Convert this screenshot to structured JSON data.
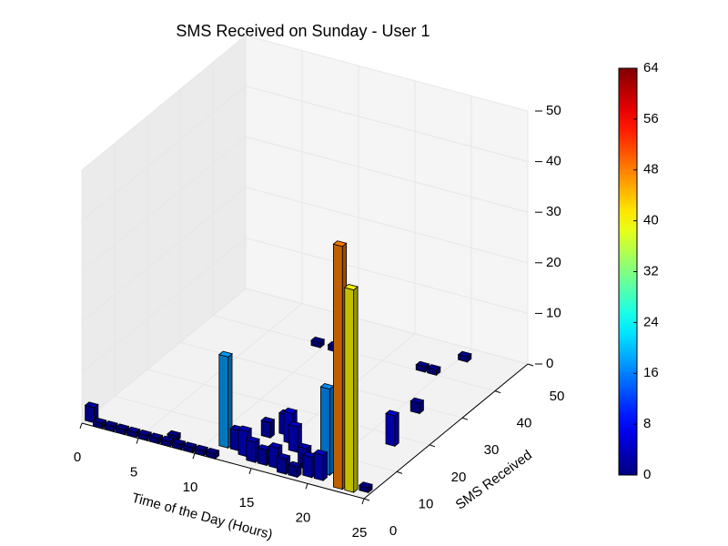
{
  "chart_data": {
    "type": "bar3d",
    "title": "SMS Received on Sunday - User 1",
    "xlabel": "Time of the Day (Hours)",
    "ylabel": "SMS Received",
    "x": [
      0,
      1,
      2,
      3,
      4,
      5,
      6,
      7,
      8,
      9,
      10,
      11,
      7,
      11,
      12,
      13,
      14,
      15,
      16,
      17,
      18,
      19,
      20,
      13,
      15,
      14,
      16,
      18,
      20,
      22,
      23,
      24,
      9,
      10.5,
      18,
      19,
      20,
      21,
      22
    ],
    "y": [
      1,
      0,
      0,
      0,
      0,
      0,
      0,
      0,
      0,
      0,
      0,
      0,
      2,
      4,
      4,
      3,
      2,
      2,
      2,
      1,
      1,
      2,
      2,
      10,
      10,
      12,
      8,
      4,
      4,
      1,
      1,
      2,
      39,
      39,
      40,
      40,
      46,
      28,
      17
    ],
    "values": [
      3,
      1,
      1,
      1,
      1,
      1,
      1,
      1,
      1,
      1,
      1,
      1,
      1,
      18,
      4,
      5,
      4,
      3,
      4,
      3,
      2,
      4,
      5,
      3,
      6,
      4,
      5,
      4,
      17,
      48,
      40,
      1,
      1,
      1,
      1,
      1,
      1,
      2,
      6
    ],
    "xlim": [
      0,
      25
    ],
    "ylim": [
      0,
      50
    ],
    "zlim": [
      0,
      50
    ],
    "xticks": [
      0,
      5,
      10,
      15,
      20,
      25
    ],
    "yticks": [
      0,
      10,
      20,
      30,
      40,
      50
    ],
    "zticks": [
      0,
      10,
      20,
      30,
      40,
      50
    ],
    "colormap": "jet",
    "clim": [
      0,
      64
    ],
    "cticks": [
      0,
      8,
      16,
      24,
      32,
      40,
      48,
      56,
      64
    ],
    "grid": true
  }
}
